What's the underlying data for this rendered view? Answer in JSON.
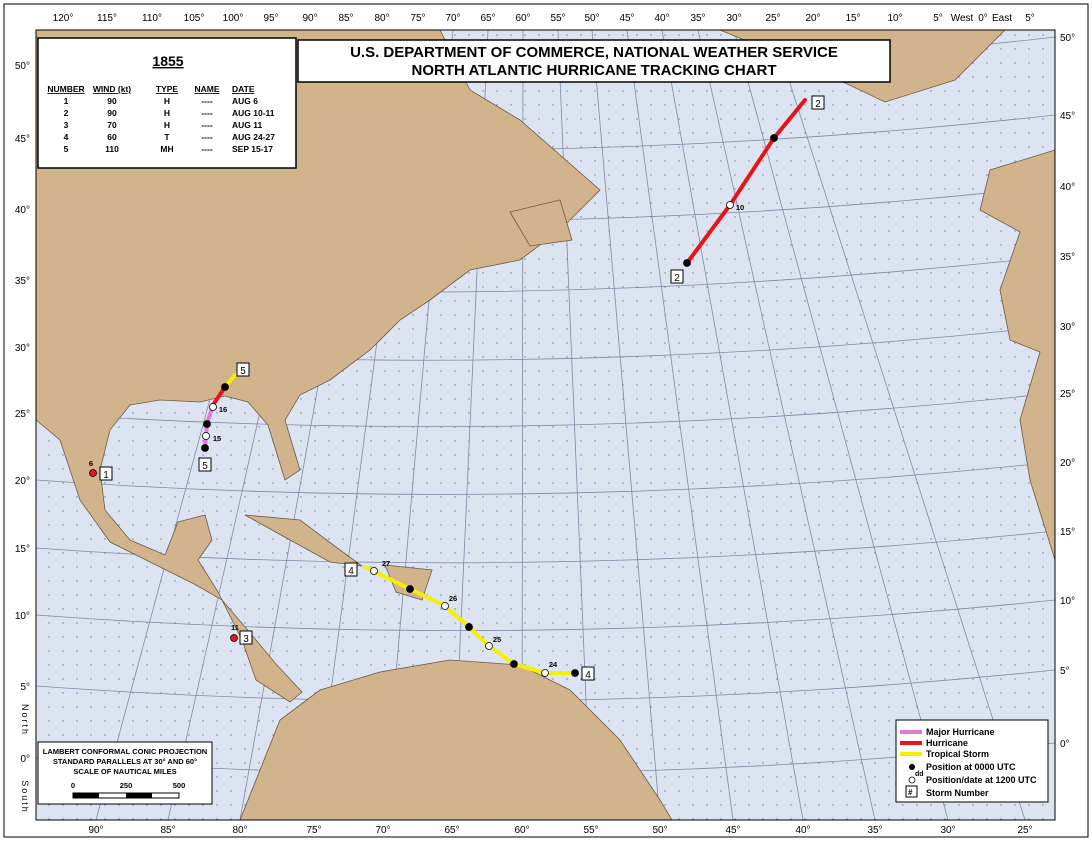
{
  "header": {
    "title_lines": [
      "U.S. DEPARTMENT OF COMMERCE, NATIONAL WEATHER SERVICE",
      "NORTH ATLANTIC HURRICANE TRACKING CHART"
    ]
  },
  "storm_table": {
    "year": "1855",
    "columns": [
      "NUMBER",
      "WIND (kt)",
      "TYPE",
      "NAME",
      "DATE"
    ],
    "rows": [
      [
        "1",
        "90",
        "H",
        "----",
        "AUG 6"
      ],
      [
        "2",
        "90",
        "H",
        "----",
        "AUG 10-11"
      ],
      [
        "3",
        "70",
        "H",
        "----",
        "AUG 11"
      ],
      [
        "4",
        "60",
        "T",
        "----",
        "AUG 24-27"
      ],
      [
        "5",
        "110",
        "MH",
        "----",
        "SEP 15-17"
      ]
    ]
  },
  "legend": {
    "items": [
      "Major Hurricane",
      "Hurricane",
      "Tropical Storm",
      "Position at 0000 UTC",
      "Position/date at 1200 UTC",
      "Storm Number"
    ],
    "symbols": [
      "dd",
      "#"
    ]
  },
  "projection": {
    "lines": [
      "LAMBERT CONFORMAL CONIC PROJECTION",
      "STANDARD PARALLELS AT 30° AND 60°",
      "SCALE OF NAUTICAL MILES"
    ],
    "scale_ticks": [
      "0",
      "250",
      "500"
    ]
  },
  "longitude_labels_top": [
    "120°",
    "115°",
    "110°",
    "105°",
    "100°",
    "95°",
    "90°",
    "85°",
    "80°",
    "75°",
    "70°",
    "65°",
    "60°",
    "55°",
    "50°",
    "45°",
    "40°",
    "35°",
    "30°",
    "25°",
    "20°",
    "15°",
    "10°",
    "5°",
    "West",
    "0°",
    "East",
    "5°"
  ],
  "longitude_labels_bottom": [
    "90°",
    "85°",
    "80°",
    "75°",
    "70°",
    "65°",
    "60°",
    "55°",
    "50°",
    "45°",
    "40°",
    "35°",
    "30°",
    "25°"
  ],
  "latitude_labels_left": [
    "50°",
    "45°",
    "40°",
    "35°",
    "30°",
    "25°",
    "20°",
    "15°",
    "10°",
    "5°",
    "0°"
  ],
  "latitude_labels_right": [
    "50°",
    "45°",
    "40°",
    "35°",
    "30°",
    "25°",
    "20°",
    "15°",
    "10°",
    "5°",
    "0°"
  ],
  "side_labels": [
    "North",
    "South"
  ],
  "storm_labels": [
    "1",
    "2",
    "2",
    "3",
    "4",
    "4",
    "5",
    "5"
  ],
  "date_labels": [
    "6",
    "10",
    "11",
    "27",
    "26",
    "25",
    "24",
    "15",
    "16"
  ]
}
